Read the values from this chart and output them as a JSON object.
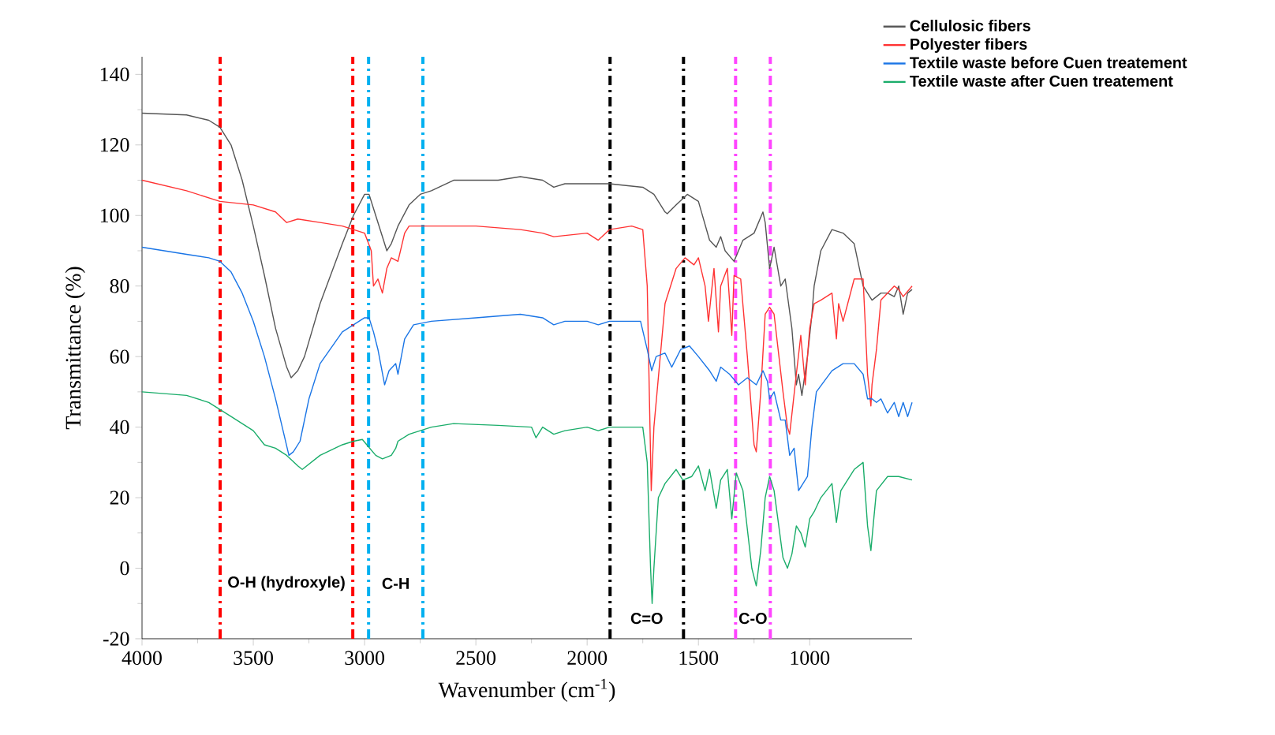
{
  "chart_data": {
    "type": "line",
    "xlabel": "Wavenumber (cm$^{-1}$)",
    "ylabel": "Transmittance (%)",
    "xlim": [
      4000,
      540
    ],
    "xticks": [
      4000,
      3500,
      3000,
      2500,
      2000,
      1500,
      1000
    ],
    "ylim": [
      -20,
      145
    ],
    "yticks": [
      -20,
      0,
      20,
      40,
      60,
      80,
      100,
      120,
      140
    ],
    "legend": "top right",
    "grid": false,
    "series": [
      {
        "name": "Cellulosic fibers",
        "color": "#555555",
        "x": [
          4000,
          3800,
          3700,
          3650,
          3600,
          3550,
          3500,
          3450,
          3400,
          3350,
          3330,
          3300,
          3270,
          3200,
          3100,
          3050,
          3000,
          2980,
          2950,
          2920,
          2900,
          2880,
          2850,
          2800,
          2750,
          2700,
          2600,
          2500,
          2400,
          2300,
          2200,
          2150,
          2100,
          2000,
          1900,
          1750,
          1700,
          1650,
          1640,
          1600,
          1550,
          1500,
          1450,
          1420,
          1400,
          1380,
          1340,
          1320,
          1300,
          1250,
          1210,
          1200,
          1180,
          1160,
          1130,
          1110,
          1080,
          1060,
          1050,
          1035,
          1010,
          990,
          980,
          950,
          900,
          850,
          800,
          760,
          720,
          680,
          650,
          620,
          600,
          580,
          560,
          540
        ],
        "values": [
          129,
          128.5,
          127,
          125,
          120,
          110,
          97,
          83,
          68,
          57,
          54,
          56,
          60,
          75,
          92,
          100,
          106,
          106,
          100,
          94,
          90,
          92,
          97,
          103,
          106,
          107,
          110,
          110,
          110,
          111,
          110,
          108,
          109,
          109,
          109,
          108,
          106,
          101,
          100.5,
          103,
          106,
          104,
          93,
          91,
          94,
          90,
          87,
          90,
          93,
          95,
          101,
          98,
          85,
          91,
          80,
          82,
          68,
          52,
          55,
          49,
          60,
          72,
          80,
          90,
          96,
          95,
          92,
          80,
          76,
          78,
          78,
          77,
          80,
          72,
          78,
          79
        ]
      },
      {
        "name": "Polyester fibers",
        "color": "#ff3333",
        "x": [
          4000,
          3800,
          3650,
          3500,
          3400,
          3350,
          3300,
          3200,
          3100,
          3050,
          3000,
          2970,
          2960,
          2940,
          2920,
          2900,
          2880,
          2850,
          2820,
          2800,
          2500,
          2300,
          2200,
          2150,
          2000,
          1950,
          1900,
          1800,
          1750,
          1730,
          1712,
          1700,
          1650,
          1600,
          1560,
          1520,
          1500,
          1470,
          1455,
          1430,
          1410,
          1400,
          1370,
          1350,
          1340,
          1310,
          1280,
          1250,
          1240,
          1220,
          1200,
          1180,
          1160,
          1120,
          1100,
          1090,
          1060,
          1040,
          1020,
          1000,
          980,
          950,
          900,
          880,
          870,
          850,
          800,
          760,
          740,
          725,
          720,
          700,
          680,
          620,
          600,
          580,
          540
        ],
        "values": [
          110,
          107,
          104,
          103,
          101,
          98,
          99,
          98,
          97,
          96,
          95,
          90,
          80,
          82,
          78,
          85,
          88,
          87,
          95,
          97,
          97,
          96,
          95,
          94,
          95,
          93,
          96,
          97,
          96,
          80,
          22,
          40,
          75,
          85,
          88,
          86,
          88,
          80,
          70,
          85,
          67,
          80,
          85,
          66,
          83,
          82,
          60,
          35,
          33,
          50,
          72,
          74,
          72,
          50,
          40,
          38,
          55,
          66,
          52,
          68,
          75,
          76,
          78,
          65,
          75,
          70,
          82,
          82,
          55,
          46,
          52,
          62,
          76,
          80,
          79,
          77,
          80
        ]
      },
      {
        "name": "Textile waste before Cuen treatement",
        "color": "#1a75e6",
        "x": [
          4000,
          3800,
          3700,
          3650,
          3600,
          3550,
          3500,
          3450,
          3400,
          3370,
          3340,
          3320,
          3290,
          3250,
          3200,
          3100,
          3000,
          2980,
          2960,
          2940,
          2910,
          2890,
          2860,
          2850,
          2820,
          2780,
          2700,
          2500,
          2300,
          2200,
          2150,
          2100,
          2000,
          1950,
          1900,
          1760,
          1730,
          1710,
          1690,
          1650,
          1620,
          1580,
          1540,
          1500,
          1450,
          1420,
          1400,
          1360,
          1320,
          1280,
          1240,
          1210,
          1190,
          1180,
          1160,
          1130,
          1110,
          1090,
          1070,
          1050,
          1030,
          1010,
          990,
          970,
          900,
          850,
          800,
          760,
          740,
          720,
          700,
          680,
          650,
          620,
          600,
          580,
          560,
          540
        ],
        "values": [
          91,
          89,
          88,
          87,
          84,
          78,
          70,
          60,
          48,
          40,
          32,
          33,
          36,
          48,
          58,
          67,
          71,
          71,
          67,
          62,
          52,
          56,
          58,
          55,
          65,
          69,
          70,
          71,
          72,
          71,
          69,
          70,
          70,
          69,
          70,
          70,
          62,
          56,
          60,
          61,
          57,
          62,
          63,
          60,
          56,
          53,
          57,
          55,
          52,
          54,
          52,
          56,
          53,
          48,
          50,
          42,
          42,
          32,
          34,
          22,
          24,
          26,
          40,
          50,
          56,
          58,
          58,
          55,
          48,
          48,
          47,
          48,
          44,
          47,
          43,
          47,
          43,
          47
        ]
      },
      {
        "name": "Textile waste after Cuen treatement",
        "color": "#1aad6a",
        "x": [
          4000,
          3800,
          3700,
          3650,
          3600,
          3500,
          3450,
          3400,
          3350,
          3300,
          3280,
          3200,
          3100,
          3050,
          3010,
          2990,
          2950,
          2920,
          2880,
          2860,
          2850,
          2800,
          2700,
          2600,
          2400,
          2250,
          2230,
          2200,
          2150,
          2100,
          2000,
          1950,
          1900,
          1750,
          1730,
          1715,
          1708,
          1700,
          1680,
          1650,
          1600,
          1570,
          1530,
          1500,
          1470,
          1450,
          1420,
          1400,
          1370,
          1350,
          1330,
          1300,
          1260,
          1240,
          1220,
          1200,
          1180,
          1160,
          1120,
          1100,
          1080,
          1060,
          1040,
          1020,
          1000,
          980,
          950,
          900,
          880,
          860,
          800,
          760,
          740,
          725,
          715,
          700,
          650,
          600,
          540
        ],
        "values": [
          50,
          49,
          47,
          45,
          43,
          39,
          35,
          34,
          32,
          29,
          28,
          32,
          35,
          36,
          36.5,
          35,
          32,
          31,
          32,
          34,
          36,
          38,
          40,
          41,
          40.5,
          40,
          37,
          40,
          38,
          39,
          40,
          39,
          40,
          40,
          30,
          0,
          -10,
          0,
          20,
          24,
          28,
          25,
          26,
          29,
          22,
          28,
          17,
          25,
          28,
          14,
          27,
          22,
          0,
          -5,
          5,
          20,
          26,
          22,
          3,
          0,
          4,
          12,
          10,
          6,
          14,
          16,
          20,
          24,
          13,
          22,
          28,
          30,
          12,
          5,
          12,
          22,
          26,
          26,
          25
        ]
      }
    ],
    "ref_lines": [
      {
        "axis": "x",
        "value": 3649,
        "color": "#ff0000",
        "line_style": "dashdot",
        "label": "O-H (hydroxyle)"
      },
      {
        "axis": "x",
        "value": 3053,
        "color": "#ff0000",
        "line_style": "dashdot"
      },
      {
        "axis": "x",
        "value": 2982,
        "color": "#00b0f0",
        "line_style": "dashdot",
        "label": "C-H"
      },
      {
        "axis": "x",
        "value": 2738,
        "color": "#00b0f0",
        "line_style": "dashdot"
      },
      {
        "axis": "x",
        "value": 1897,
        "color": "#000000",
        "line_style": "dashdot",
        "label": "C=O"
      },
      {
        "axis": "x",
        "value": 1567,
        "color": "#000000",
        "line_style": "dashdot"
      },
      {
        "axis": "x",
        "value": 1333,
        "color": "#ff44ff",
        "line_style": "dashdot",
        "label": "C-O"
      },
      {
        "axis": "x",
        "value": 1177,
        "color": "#ff44ff",
        "line_style": "dashdot"
      }
    ]
  }
}
